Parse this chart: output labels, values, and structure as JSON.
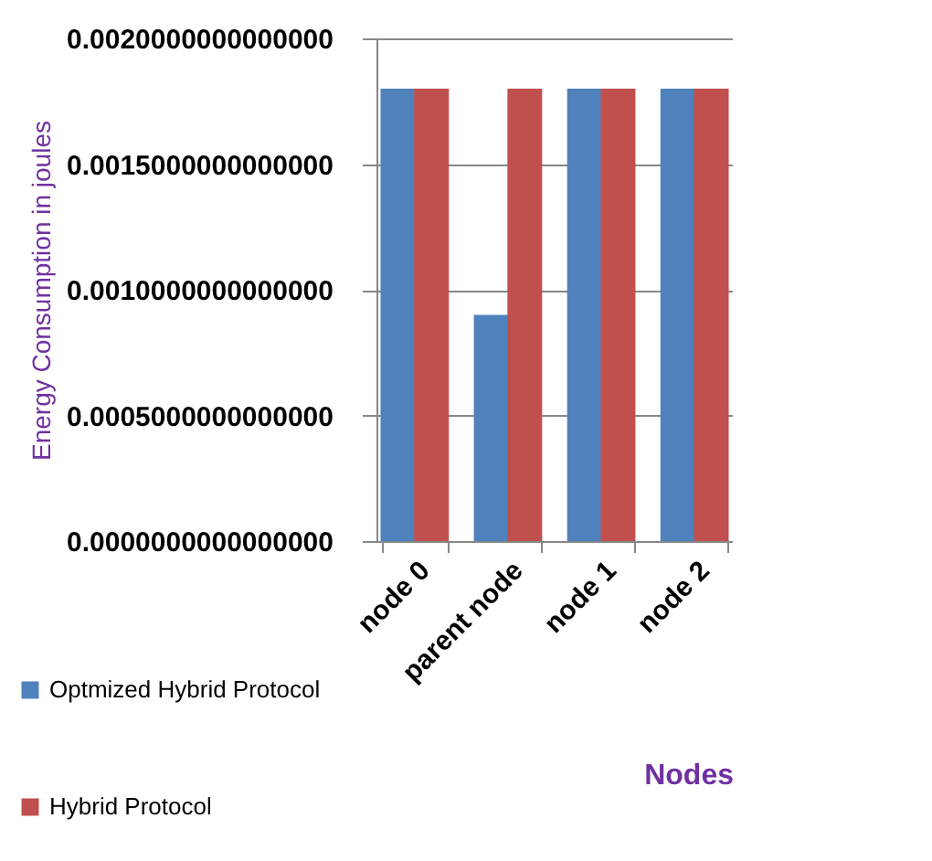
{
  "chart_data": {
    "type": "bar",
    "xlabel": "Nodes",
    "ylabel": "Energy Consumption  in joules",
    "categories": [
      "node 0",
      "parent node",
      "node 1",
      "node 2"
    ],
    "series": [
      {
        "name": "Optmized Hybrid Protocol",
        "color": "#4f81bd",
        "values": [
          0.0018,
          0.0009,
          0.0018,
          0.0018
        ]
      },
      {
        "name": "Hybrid Protocol",
        "color": "#c0504d",
        "values": [
          0.0018,
          0.0018,
          0.0018,
          0.0018
        ]
      }
    ],
    "ylim": [
      0,
      0.002
    ],
    "yticks": [
      {
        "value": 0,
        "label": "0.0000000000000000"
      },
      {
        "value": 0.0005,
        "label": "0.0005000000000000"
      },
      {
        "value": 0.001,
        "label": "0.0010000000000000"
      },
      {
        "value": 0.0015,
        "label": "0.0015000000000000"
      },
      {
        "value": 0.002,
        "label": "0.0020000000000000"
      }
    ],
    "grid": "y",
    "legend": "bottom left"
  }
}
